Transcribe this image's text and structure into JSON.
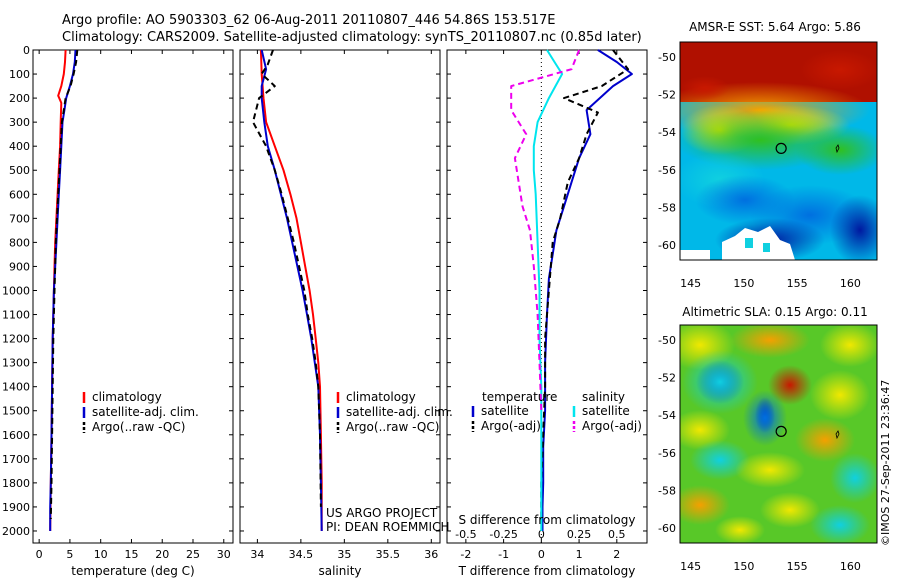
{
  "header": {
    "line1": "Argo profile: AO 5903303_62 06-Aug-2011 20110807_446 54.86S 153.517E",
    "line2": "Climatology: CARS2009. Satellite-adjusted climatology: synTS_20110807.nc (0.85d later)"
  },
  "credit": {
    "project": "US ARGO PROJECT",
    "pi": "PI: DEAN ROEMMICH",
    "stamp": "©IMOS 27-Sep-2011 23:36:47"
  },
  "colors": {
    "climatology": "#ff0000",
    "satellite": "#0000cc",
    "argo": "#000000",
    "sat_diff_s": "#00e5ee",
    "argo_diff_s": "#ee00ee"
  },
  "chart_data": [
    {
      "type": "line",
      "id": "temperature",
      "xlabel": "temperature (deg C)",
      "xlim": [
        -1,
        31.5
      ],
      "ylim": [
        2050,
        0
      ],
      "xticks": [
        0,
        5,
        10,
        15,
        20,
        25,
        30
      ],
      "yticks": [
        0,
        100,
        200,
        300,
        400,
        500,
        600,
        700,
        800,
        900,
        1000,
        1100,
        1200,
        1300,
        1400,
        1500,
        1600,
        1700,
        1800,
        1900,
        2000
      ],
      "legend": [
        "climatology",
        "satellite-adj. clim.",
        "Argo(..raw -QC)"
      ],
      "series": [
        {
          "name": "climatology",
          "color": "#ff0000",
          "dash": "",
          "x": [
            4.3,
            4.2,
            4.0,
            3.6,
            3.1,
            3.6,
            3.5,
            3.4,
            3.2,
            3.0,
            2.8,
            2.6,
            2.5,
            2.4,
            2.3,
            2.2,
            2.1,
            2.0,
            1.9,
            1.85,
            1.8
          ],
          "y": [
            0,
            50,
            100,
            150,
            190,
            220,
            300,
            400,
            500,
            600,
            700,
            800,
            900,
            1000,
            1100,
            1200,
            1400,
            1600,
            1800,
            1900,
            2000
          ]
        },
        {
          "name": "satellite-adj. clim.",
          "color": "#0000cc",
          "dash": "",
          "x": [
            5.9,
            5.8,
            5.5,
            5.0,
            4.4,
            4.1,
            3.8,
            3.6,
            3.4,
            3.2,
            3.0,
            2.8,
            2.6,
            2.4,
            2.3,
            2.2,
            2.1,
            2.0,
            1.9,
            1.8,
            1.8
          ],
          "y": [
            0,
            50,
            100,
            150,
            200,
            250,
            300,
            400,
            500,
            600,
            700,
            800,
            900,
            1000,
            1100,
            1200,
            1400,
            1600,
            1800,
            1900,
            2000
          ]
        },
        {
          "name": "Argo(..raw -QC)",
          "color": "#000000",
          "dash": "6,4",
          "x": [
            6.2,
            6.0,
            5.6,
            5.1,
            4.3,
            4.0,
            3.7,
            3.5,
            3.3,
            3.1,
            2.9,
            2.7,
            2.6,
            2.5,
            2.3,
            2.2,
            2.1,
            2.0,
            1.9
          ],
          "y": [
            0,
            50,
            100,
            150,
            200,
            250,
            300,
            400,
            500,
            600,
            700,
            800,
            900,
            1000,
            1200,
            1400,
            1600,
            1800,
            1950
          ]
        }
      ]
    },
    {
      "type": "line",
      "id": "salinity",
      "xlabel": "salinity",
      "xlim": [
        33.8,
        36.1
      ],
      "ylim": [
        2050,
        0
      ],
      "xticks": [
        34,
        34.5,
        35,
        35.5,
        36
      ],
      "legend": [
        "climatology",
        "satellite-adj. clim.",
        "Argo(..raw -QC)"
      ],
      "series": [
        {
          "name": "climatology",
          "color": "#ff0000",
          "dash": "",
          "x": [
            34.04,
            34.05,
            34.07,
            34.1,
            34.2,
            34.3,
            34.38,
            34.45,
            34.5,
            34.55,
            34.6,
            34.64,
            34.67,
            34.7,
            34.72,
            34.73,
            34.74,
            34.74
          ],
          "y": [
            0,
            100,
            200,
            300,
            400,
            500,
            600,
            700,
            800,
            900,
            1000,
            1100,
            1200,
            1300,
            1400,
            1600,
            1800,
            2000
          ]
        },
        {
          "name": "satellite-adj. clim.",
          "color": "#0000cc",
          "dash": "",
          "x": [
            34.05,
            34.1,
            34.05,
            34.05,
            34.08,
            34.12,
            34.2,
            34.27,
            34.34,
            34.4,
            34.46,
            34.52,
            34.57,
            34.62,
            34.66,
            34.7,
            34.72,
            34.73,
            34.74
          ],
          "y": [
            0,
            80,
            150,
            200,
            300,
            400,
            500,
            600,
            700,
            800,
            900,
            1000,
            1100,
            1200,
            1300,
            1400,
            1600,
            1800,
            2000
          ]
        },
        {
          "name": "Argo(..raw -QC)",
          "color": "#000000",
          "dash": "6,4",
          "x": [
            34.18,
            34.12,
            34.05,
            34.2,
            34.02,
            33.95,
            34.1,
            34.15,
            34.2,
            34.28,
            34.35,
            34.42,
            34.48,
            34.54,
            34.58,
            34.63,
            34.67,
            34.7,
            34.72,
            34.73
          ],
          "y": [
            0,
            60,
            100,
            150,
            200,
            300,
            400,
            450,
            500,
            600,
            700,
            800,
            900,
            1000,
            1100,
            1200,
            1300,
            1400,
            1600,
            1900
          ]
        }
      ]
    },
    {
      "type": "line",
      "id": "difference",
      "xlabel": "T difference from climatology",
      "xlabel_top": "S difference from climatology",
      "xlim": [
        -2.5,
        2.8
      ],
      "ylim": [
        2050,
        0
      ],
      "xticks": [
        -2,
        -1,
        0,
        1,
        2
      ],
      "xticks_top": [
        "-0.5",
        "-0.25",
        "0",
        "0.25",
        "0.5"
      ],
      "legend": {
        "temperature": "temperature",
        "salinity": "salinity",
        "t_sat": "satellite",
        "t_argo": "Argo(-adj)",
        "s_sat": "satellite",
        "s_argo": "Argo(-adj)"
      },
      "series": [
        {
          "name": "T satellite",
          "color": "#0000cc",
          "dash": "",
          "x": [
            1.5,
            2.0,
            2.4,
            1.9,
            1.2,
            1.3,
            1.0,
            0.8,
            0.6,
            0.4,
            0.3,
            0.2,
            0.15,
            0.1,
            0.1,
            0.05,
            0.05,
            0.03,
            0.03
          ],
          "y": [
            0,
            50,
            100,
            150,
            250,
            350,
            450,
            550,
            650,
            750,
            850,
            950,
            1100,
            1300,
            1500,
            1650,
            1800,
            1900,
            2000
          ]
        },
        {
          "name": "T Argo(-adj)",
          "color": "#000000",
          "dash": "6,4",
          "x": [
            1.9,
            2.3,
            1.6,
            0.6,
            1.5,
            1.2,
            1.0,
            0.7,
            0.5,
            0.3,
            0.2,
            0.1,
            0.1,
            0.05,
            0.0,
            0.0
          ],
          "y": [
            0,
            80,
            150,
            200,
            260,
            350,
            450,
            550,
            700,
            800,
            1000,
            1200,
            1400,
            1600,
            1800,
            1950
          ]
        },
        {
          "name": "S satellite",
          "color": "#00e5ee",
          "dash": "",
          "x": [
            0.15,
            0.35,
            0.55,
            0.2,
            -0.1,
            -0.2,
            -0.2,
            -0.15,
            -0.1,
            -0.05,
            -0.05,
            0.0,
            0.0,
            0.0,
            0.0
          ],
          "y": [
            0,
            50,
            100,
            200,
            300,
            400,
            500,
            600,
            800,
            1000,
            1200,
            1400,
            1600,
            1800,
            2000
          ]
        },
        {
          "name": "S Argo(-adj)",
          "color": "#ee00ee",
          "dash": "6,4",
          "x": [
            1.0,
            0.8,
            -0.8,
            -0.8,
            -0.4,
            -0.7,
            -0.6,
            -0.5,
            -0.3,
            -0.2,
            -0.1,
            -0.05,
            0.0
          ],
          "y": [
            0,
            80,
            150,
            250,
            350,
            450,
            550,
            650,
            750,
            900,
            1100,
            1300,
            1500
          ]
        }
      ]
    },
    {
      "type": "heatmap",
      "id": "sst-map",
      "title": "AMSR-E SST: 5.64 Argo: 5.86",
      "xlim": [
        144,
        162.5
      ],
      "ylim": [
        -60.8,
        -49.2
      ],
      "xticks": [
        "145",
        "150",
        "155",
        "160"
      ],
      "yticks": [
        "-50",
        "-52",
        "-54",
        "-56",
        "-58",
        "-60"
      ],
      "marker": {
        "lon": 153.5,
        "lat": -54.86
      }
    },
    {
      "type": "heatmap",
      "id": "sla-map",
      "title": "Altimetric SLA: 0.15 Argo: 0.11",
      "xlim": [
        144,
        162.5
      ],
      "ylim": [
        -60.8,
        -49.2
      ],
      "xticks": [
        "145",
        "150",
        "155",
        "160"
      ],
      "yticks": [
        "-50",
        "-52",
        "-54",
        "-56",
        "-58",
        "-60"
      ],
      "marker": {
        "lon": 153.5,
        "lat": -54.86
      }
    }
  ]
}
